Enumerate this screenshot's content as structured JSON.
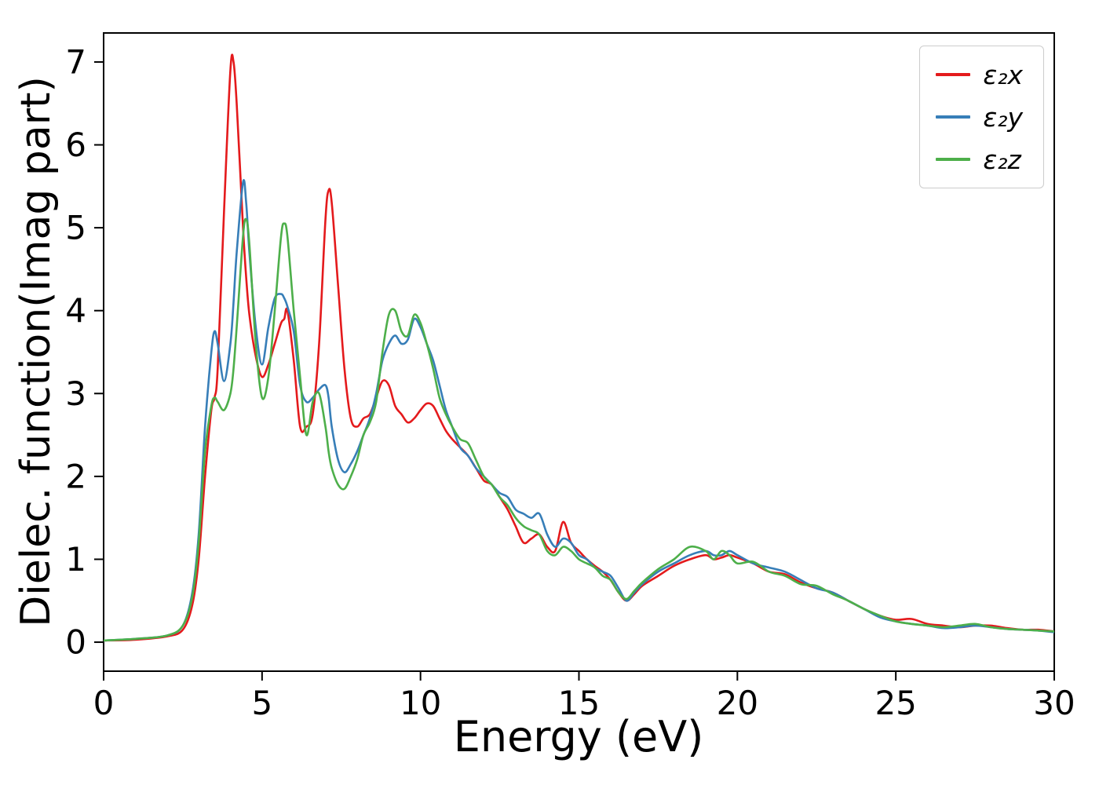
{
  "figure": {
    "background": "#ffffff"
  },
  "chart_data": {
    "type": "line",
    "title": "",
    "xlabel": "Energy (eV)",
    "ylabel": "Dielec. function(Imag part)",
    "xlim": [
      0,
      30
    ],
    "ylim": [
      -0.35,
      7.35
    ],
    "xticks": [
      0,
      5,
      10,
      15,
      20,
      25,
      30
    ],
    "yticks": [
      0,
      1,
      2,
      3,
      4,
      5,
      6,
      7
    ],
    "grid": false,
    "legend_position": "upper right",
    "x": [
      0,
      1,
      2,
      2.5,
      2.8,
      3.0,
      3.2,
      3.4,
      3.5,
      3.6,
      3.8,
      4.0,
      4.1,
      4.2,
      4.4,
      4.5,
      4.6,
      4.8,
      5.0,
      5.2,
      5.4,
      5.6,
      5.7,
      5.8,
      6.0,
      6.2,
      6.4,
      6.6,
      6.8,
      7.0,
      7.1,
      7.2,
      7.4,
      7.6,
      7.8,
      8.0,
      8.2,
      8.4,
      8.6,
      8.8,
      9.0,
      9.2,
      9.4,
      9.6,
      9.8,
      10.0,
      10.2,
      10.4,
      10.6,
      10.8,
      11.0,
      11.25,
      11.5,
      11.75,
      12.0,
      12.25,
      12.5,
      12.75,
      13.0,
      13.25,
      13.5,
      13.75,
      14.0,
      14.25,
      14.5,
      14.75,
      15.0,
      15.25,
      15.5,
      15.75,
      16.0,
      16.25,
      16.5,
      16.75,
      17.0,
      17.5,
      18.0,
      18.5,
      19.0,
      19.25,
      19.5,
      19.75,
      20.0,
      20.5,
      21.0,
      21.5,
      22.0,
      22.5,
      23.0,
      23.5,
      24.0,
      24.5,
      25.0,
      25.5,
      26.0,
      26.5,
      27.0,
      27.5,
      28.0,
      28.5,
      29.0,
      29.5,
      30.0
    ],
    "series": [
      {
        "name": "eps2x",
        "label": "ε₂x",
        "color": "#e41a1c",
        "values": [
          0.02,
          0.03,
          0.07,
          0.15,
          0.45,
          1.0,
          2.0,
          2.8,
          2.95,
          3.3,
          5.2,
          6.9,
          7.0,
          6.5,
          5.0,
          4.4,
          3.95,
          3.45,
          3.2,
          3.35,
          3.6,
          3.85,
          3.9,
          4.0,
          3.4,
          2.6,
          2.6,
          2.75,
          3.6,
          5.1,
          5.45,
          5.3,
          4.3,
          3.3,
          2.7,
          2.6,
          2.7,
          2.75,
          2.95,
          3.15,
          3.1,
          2.85,
          2.75,
          2.65,
          2.7,
          2.8,
          2.88,
          2.85,
          2.7,
          2.55,
          2.45,
          2.35,
          2.25,
          2.1,
          1.95,
          1.9,
          1.75,
          1.6,
          1.4,
          1.2,
          1.25,
          1.3,
          1.15,
          1.1,
          1.45,
          1.2,
          1.1,
          1.0,
          0.92,
          0.85,
          0.75,
          0.6,
          0.5,
          0.58,
          0.68,
          0.8,
          0.92,
          1.0,
          1.05,
          1.0,
          1.02,
          1.05,
          1.02,
          0.95,
          0.85,
          0.82,
          0.72,
          0.65,
          0.6,
          0.5,
          0.4,
          0.32,
          0.27,
          0.28,
          0.22,
          0.2,
          0.18,
          0.2,
          0.2,
          0.17,
          0.15,
          0.15,
          0.13
        ]
      },
      {
        "name": "eps2y",
        "label": "ε₂y",
        "color": "#377eb8",
        "values": [
          0.02,
          0.04,
          0.08,
          0.2,
          0.6,
          1.3,
          2.6,
          3.5,
          3.75,
          3.6,
          3.15,
          3.6,
          4.1,
          4.7,
          5.55,
          5.3,
          4.7,
          3.8,
          3.35,
          3.8,
          4.15,
          4.2,
          4.15,
          4.05,
          3.75,
          3.1,
          2.9,
          2.95,
          3.05,
          3.1,
          2.95,
          2.6,
          2.2,
          2.05,
          2.15,
          2.3,
          2.5,
          2.7,
          3.0,
          3.4,
          3.6,
          3.7,
          3.6,
          3.65,
          3.9,
          3.8,
          3.6,
          3.4,
          3.1,
          2.8,
          2.6,
          2.35,
          2.25,
          2.1,
          2.0,
          1.9,
          1.8,
          1.75,
          1.6,
          1.55,
          1.5,
          1.55,
          1.3,
          1.15,
          1.25,
          1.2,
          1.05,
          1.0,
          0.9,
          0.85,
          0.8,
          0.65,
          0.5,
          0.6,
          0.7,
          0.85,
          0.95,
          1.05,
          1.1,
          1.05,
          1.05,
          1.1,
          1.05,
          0.95,
          0.9,
          0.85,
          0.75,
          0.65,
          0.6,
          0.5,
          0.4,
          0.3,
          0.25,
          0.22,
          0.2,
          0.17,
          0.18,
          0.2,
          0.18,
          0.16,
          0.15,
          0.14,
          0.12
        ]
      },
      {
        "name": "eps2z",
        "label": "ε₂z",
        "color": "#4daf4a",
        "values": [
          0.02,
          0.04,
          0.08,
          0.2,
          0.55,
          1.2,
          2.3,
          2.85,
          2.95,
          2.9,
          2.8,
          3.0,
          3.3,
          3.8,
          4.9,
          5.1,
          4.8,
          3.6,
          2.95,
          3.2,
          4.0,
          4.9,
          5.05,
          4.9,
          4.0,
          3.2,
          2.5,
          2.9,
          3.0,
          2.6,
          2.3,
          2.1,
          1.9,
          1.85,
          2.0,
          2.2,
          2.5,
          2.65,
          2.9,
          3.5,
          3.95,
          4.0,
          3.75,
          3.7,
          3.95,
          3.85,
          3.6,
          3.3,
          2.95,
          2.75,
          2.6,
          2.45,
          2.4,
          2.2,
          2.0,
          1.9,
          1.75,
          1.65,
          1.5,
          1.4,
          1.35,
          1.3,
          1.1,
          1.05,
          1.15,
          1.1,
          1.0,
          0.95,
          0.9,
          0.8,
          0.75,
          0.6,
          0.52,
          0.62,
          0.72,
          0.88,
          1.0,
          1.15,
          1.1,
          1.0,
          1.1,
          1.05,
          0.95,
          0.97,
          0.85,
          0.8,
          0.7,
          0.68,
          0.58,
          0.5,
          0.4,
          0.32,
          0.25,
          0.22,
          0.2,
          0.18,
          0.2,
          0.22,
          0.18,
          0.16,
          0.15,
          0.14,
          0.13
        ]
      }
    ]
  }
}
